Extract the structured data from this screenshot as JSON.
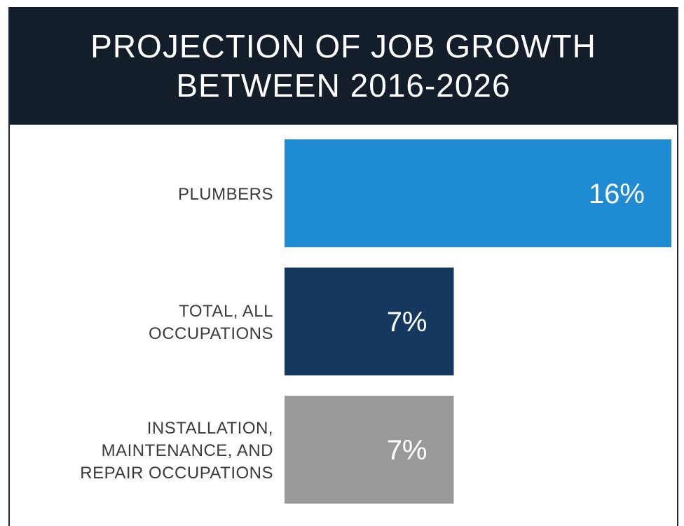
{
  "chart_data": {
    "type": "bar",
    "orientation": "horizontal",
    "title_lines": [
      "PROJECTION OF JOB GROWTH",
      "BETWEEN 2016-2026"
    ],
    "categories": [
      [
        "PLUMBERS"
      ],
      [
        "TOTAL, ALL",
        "OCCUPATIONS"
      ],
      [
        "INSTALLATION,",
        "MAINTENANCE, AND",
        "REPAIR OCCUPATIONS"
      ]
    ],
    "values": [
      16,
      7,
      7
    ],
    "value_labels": [
      "16%",
      "7%",
      "7%"
    ],
    "unit": "%",
    "colors": [
      "#1e8bd3",
      "#14385e",
      "#999999"
    ],
    "xlim": [
      0,
      16
    ],
    "grid": false,
    "legend": "none"
  },
  "colors": {
    "header_bg": "#141e2b",
    "header_text": "#ffffff",
    "label_text": "#3b3b3b"
  }
}
